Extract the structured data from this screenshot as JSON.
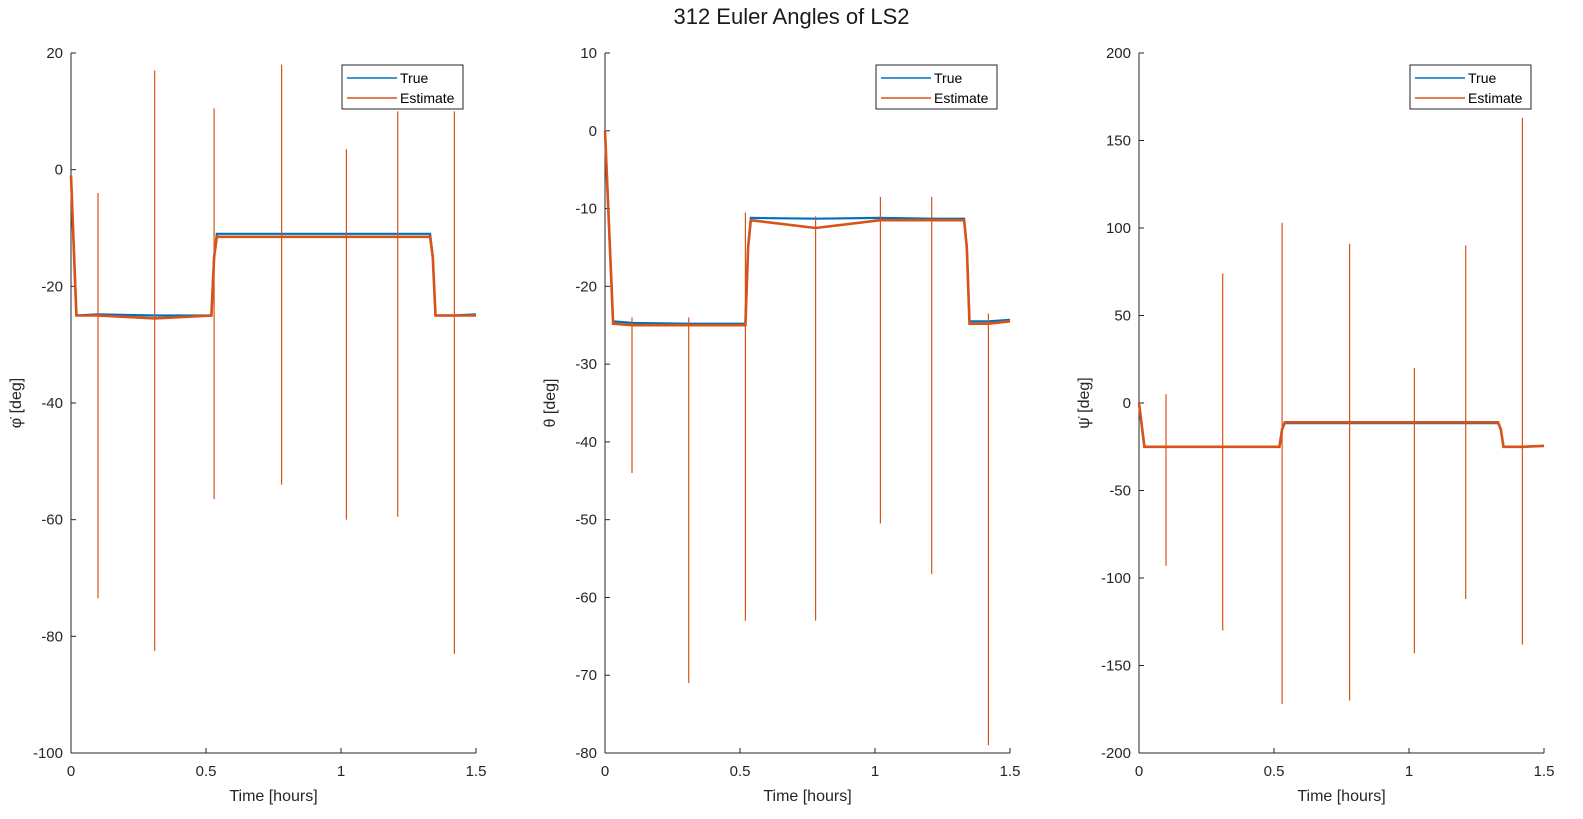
{
  "figure": {
    "title": "312 Euler Angles of LS2"
  },
  "colors": {
    "true": "#0072BD",
    "estimate": "#D95319",
    "axis": "#262626"
  },
  "chart_data": [
    {
      "type": "line",
      "xlabel": "Time [hours]",
      "ylabel": "φ̇ [deg]",
      "xlim": [
        0,
        1.5
      ],
      "ylim": [
        -100,
        20
      ],
      "xticks": [
        0,
        0.5,
        1,
        1.5
      ],
      "xtick_labels": [
        "0",
        "0.5",
        "1",
        "1.5"
      ],
      "yticks": [
        20,
        0,
        -20,
        -40,
        -60,
        -80,
        -100
      ],
      "ytick_labels": [
        "20",
        "0",
        "-20",
        "-40",
        "-60",
        "-80",
        "-100"
      ],
      "legend": {
        "position": "top-right",
        "entries": [
          "True",
          "Estimate"
        ]
      },
      "grid": false,
      "series": [
        {
          "name": "True",
          "x": [
            0,
            0.02,
            0.1,
            0.31,
            0.52,
            0.53,
            0.54,
            0.78,
            1.02,
            1.21,
            1.33,
            1.34,
            1.35,
            1.42,
            1.5
          ],
          "values": [
            -1,
            -25,
            -24.8,
            -25,
            -25,
            -15,
            -11,
            -11,
            -11,
            -11,
            -11,
            -15,
            -25,
            -25,
            -24.8
          ]
        },
        {
          "name": "Estimate",
          "x": [
            0,
            0.02,
            0.1,
            0.31,
            0.52,
            0.53,
            0.54,
            0.78,
            1.02,
            1.21,
            1.33,
            1.34,
            1.35,
            1.42,
            1.5
          ],
          "values": [
            -1,
            -25,
            -25,
            -25.5,
            -25,
            -15,
            -11.5,
            -11.5,
            -11.5,
            -11.5,
            -11.5,
            -15,
            -25,
            -25,
            -25
          ]
        },
        {
          "name": "Estimate spikes",
          "x": [
            0.1,
            0.31,
            0.53,
            0.78,
            1.02,
            1.21,
            1.42
          ],
          "high": [
            -4,
            17,
            10.5,
            18,
            3.5,
            10,
            10
          ],
          "low": [
            -73.5,
            -82.5,
            -56.5,
            -54,
            -60,
            -59.5,
            -83
          ]
        }
      ]
    },
    {
      "type": "line",
      "xlabel": "Time [hours]",
      "ylabel": "θ [deg]",
      "xlim": [
        0,
        1.5
      ],
      "ylim": [
        -80,
        10
      ],
      "xticks": [
        0,
        0.5,
        1,
        1.5
      ],
      "xtick_labels": [
        "0",
        "0.5",
        "1",
        "1.5"
      ],
      "yticks": [
        10,
        0,
        -10,
        -20,
        -30,
        -40,
        -50,
        -60,
        -70,
        -80
      ],
      "ytick_labels": [
        "10",
        "0",
        "-10",
        "-20",
        "-30",
        "-40",
        "-50",
        "-60",
        "-70",
        "-80"
      ],
      "legend": {
        "position": "top-right",
        "entries": [
          "True",
          "Estimate"
        ]
      },
      "grid": false,
      "series": [
        {
          "name": "True",
          "x": [
            0,
            0.03,
            0.1,
            0.31,
            0.52,
            0.53,
            0.54,
            0.78,
            1.02,
            1.21,
            1.33,
            1.34,
            1.35,
            1.42,
            1.5
          ],
          "values": [
            0,
            -24.5,
            -24.7,
            -24.8,
            -24.8,
            -15,
            -11.2,
            -11.3,
            -11.2,
            -11.3,
            -11.3,
            -15,
            -24.5,
            -24.5,
            -24.3
          ]
        },
        {
          "name": "Estimate",
          "x": [
            0,
            0.03,
            0.1,
            0.31,
            0.52,
            0.53,
            0.54,
            0.78,
            1.02,
            1.21,
            1.33,
            1.34,
            1.35,
            1.42,
            1.5
          ],
          "values": [
            0,
            -24.8,
            -25,
            -25,
            -25,
            -15,
            -11.5,
            -12.5,
            -11.5,
            -11.5,
            -11.5,
            -15,
            -24.8,
            -24.8,
            -24.5
          ]
        },
        {
          "name": "Estimate spikes",
          "x": [
            0.1,
            0.31,
            0.52,
            0.78,
            1.02,
            1.21,
            1.42
          ],
          "high": [
            -24,
            -24,
            -10.5,
            -11,
            -8.5,
            -8.5,
            -23.5
          ],
          "low": [
            -44,
            -71,
            -63,
            -63,
            -50.5,
            -57,
            -79
          ]
        }
      ]
    },
    {
      "type": "line",
      "xlabel": "Time [hours]",
      "ylabel": "ψ̇ [deg]",
      "xlim": [
        0,
        1.5
      ],
      "ylim": [
        -200,
        200
      ],
      "xticks": [
        0,
        0.5,
        1,
        1.5
      ],
      "xtick_labels": [
        "0",
        "0.5",
        "1",
        "1.5"
      ],
      "yticks": [
        200,
        150,
        100,
        50,
        0,
        -50,
        -100,
        -150,
        -200
      ],
      "ytick_labels": [
        "200",
        "150",
        "100",
        "50",
        "0",
        "-50",
        "-100",
        "-150",
        "-200"
      ],
      "legend": {
        "position": "top-right",
        "entries": [
          "True",
          "Estimate"
        ]
      },
      "grid": false,
      "series": [
        {
          "name": "True",
          "x": [
            0,
            0.02,
            0.1,
            0.31,
            0.52,
            0.53,
            0.54,
            0.78,
            1.02,
            1.21,
            1.33,
            1.34,
            1.35,
            1.42,
            1.5
          ],
          "values": [
            0,
            -25,
            -25,
            -25,
            -25,
            -15,
            -11.5,
            -11.5,
            -11.5,
            -11.5,
            -11.5,
            -15,
            -25,
            -25,
            -24.5
          ]
        },
        {
          "name": "Estimate",
          "x": [
            0,
            0.02,
            0.1,
            0.31,
            0.52,
            0.53,
            0.54,
            0.78,
            1.02,
            1.21,
            1.33,
            1.34,
            1.35,
            1.42,
            1.5
          ],
          "values": [
            0,
            -25,
            -25,
            -25,
            -25,
            -15,
            -11,
            -11,
            -11,
            -11,
            -11,
            -15,
            -25,
            -25,
            -24.5
          ]
        },
        {
          "name": "Estimate spikes",
          "x": [
            0.1,
            0.31,
            0.53,
            0.78,
            1.02,
            1.21,
            1.42
          ],
          "high": [
            5,
            74,
            103,
            91,
            20,
            90,
            163
          ],
          "low": [
            -93,
            -130,
            -172,
            -170,
            -143,
            -112,
            -138
          ]
        }
      ]
    }
  ]
}
